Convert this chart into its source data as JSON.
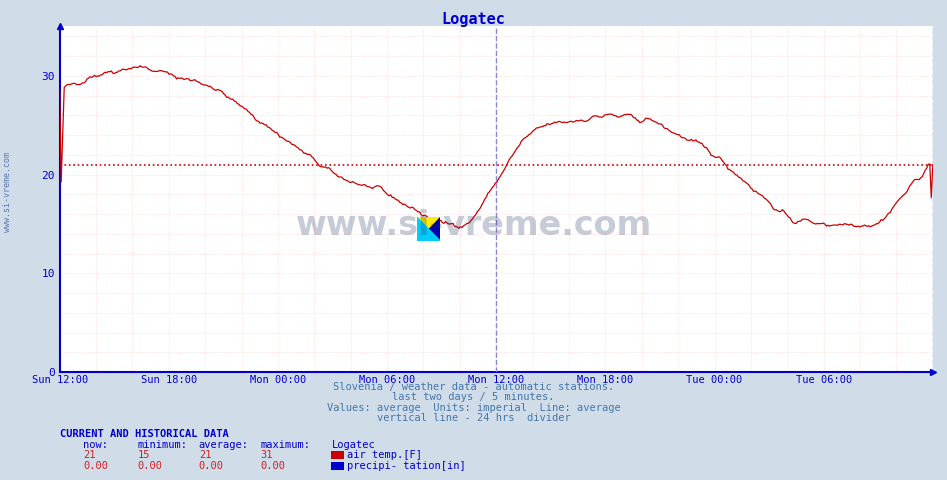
{
  "title": "Logatec",
  "title_color": "#0000cc",
  "bg_color": "#d0dce8",
  "plot_bg_color": "#ffffff",
  "grid_color_major": "#ffcccc",
  "avg_line_color": "#cc0000",
  "vline_color": "#8888cc",
  "axis_color": "#0000cc",
  "line_color": "#cc0000",
  "xlim": [
    0,
    576
  ],
  "ylim": [
    0,
    35
  ],
  "yticks": [
    0,
    10,
    20,
    30
  ],
  "xtick_labels": [
    "Sun 12:00",
    "Sun 18:00",
    "Mon 00:00",
    "Mon 06:00",
    "Mon 12:00",
    "Mon 18:00",
    "Tue 00:00",
    "Tue 06:00"
  ],
  "xtick_positions": [
    0,
    72,
    144,
    216,
    288,
    360,
    432,
    504
  ],
  "vline_pos": 288,
  "right_vline_pos": 576,
  "avg_value": 21,
  "subtitle_lines": [
    "Slovenia / weather data - automatic stations.",
    "last two days / 5 minutes.",
    "Values: average  Units: imperial  Line: average",
    "vertical line - 24 hrs  divider"
  ],
  "footer_title": "CURRENT AND HISTORICAL DATA",
  "footer_headers": [
    "now:",
    "minimum:",
    "average:",
    "maximum:",
    "Logatec"
  ],
  "footer_row1": [
    "21",
    "15",
    "21",
    "31",
    "air temp.[F]"
  ],
  "footer_row2": [
    "0.00",
    "0.00",
    "0.00",
    "0.00",
    "precipi- tation[in]"
  ],
  "legend_color1": "#cc0000",
  "legend_color2": "#0000cc",
  "watermark": "www.si-vreme.com",
  "side_label": "www.si-vreme.com"
}
